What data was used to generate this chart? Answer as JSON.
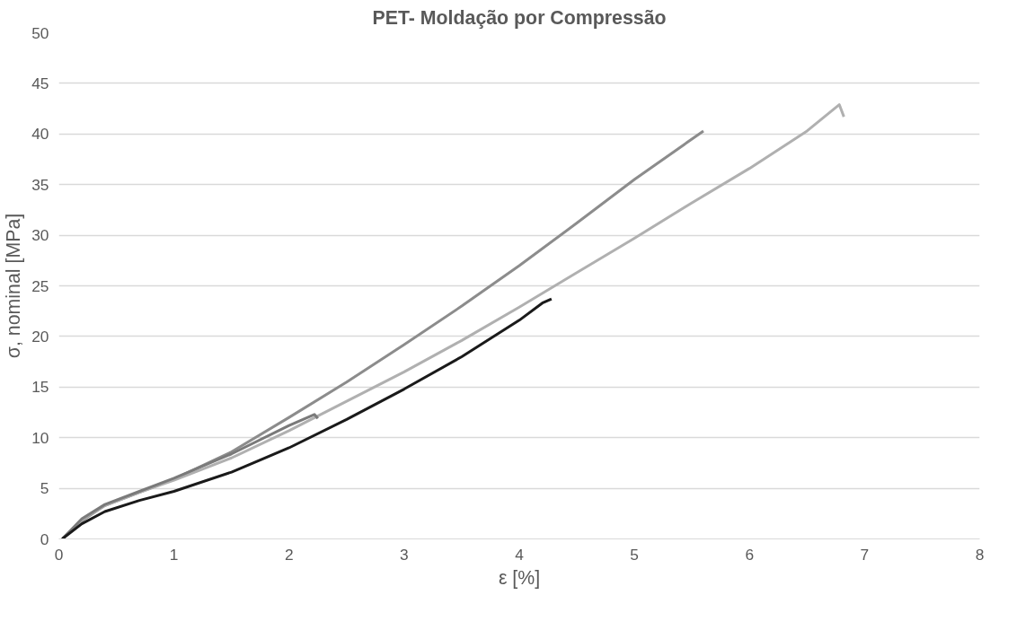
{
  "chart_data": {
    "type": "line",
    "title": "PET- Moldação por Compressão",
    "xlabel": "ε [%]",
    "ylabel": "σ, nominal [MPa]",
    "xlim": [
      0,
      8
    ],
    "ylim": [
      0,
      50
    ],
    "xticks": [
      0,
      1,
      2,
      3,
      4,
      5,
      6,
      7,
      8
    ],
    "yticks": [
      0,
      5,
      10,
      15,
      20,
      25,
      30,
      35,
      40,
      45,
      50
    ],
    "grid": "y",
    "marker": "none",
    "line_style": "solid",
    "series": [
      {
        "color": "#8c8c8c",
        "x": [
          0.03,
          0.2,
          0.4,
          0.7,
          1,
          1.5,
          2,
          2.5,
          3,
          3.5,
          4,
          4.5,
          5,
          5.6
        ],
        "values": [
          0,
          1.8,
          3.3,
          4.6,
          5.9,
          8.6,
          12,
          15.5,
          19.2,
          23,
          27,
          31.2,
          35.5,
          40.3
        ]
      },
      {
        "color": "#b0b0b0",
        "x": [
          0.03,
          0.2,
          0.4,
          0.7,
          1,
          1.5,
          2,
          2.5,
          3,
          3.5,
          4,
          4.5,
          5,
          5.5,
          6,
          6.5,
          6.78,
          6.82
        ],
        "values": [
          0,
          1.9,
          3.3,
          4.6,
          5.8,
          8.0,
          10.7,
          13.6,
          16.5,
          19.6,
          22.9,
          26.3,
          29.7,
          33.2,
          36.6,
          40.3,
          42.9,
          41.7
        ]
      },
      {
        "color": "#7a7a7a",
        "x": [
          0.03,
          0.2,
          0.4,
          0.7,
          1,
          1.5,
          2,
          2.22,
          2.25
        ],
        "values": [
          0,
          2,
          3.4,
          4.7,
          6.0,
          8.4,
          11.2,
          12.3,
          11.9
        ]
      },
      {
        "color": "#1a1a1a",
        "x": [
          0.03,
          0.2,
          0.4,
          0.7,
          1,
          1.5,
          2,
          2.5,
          3,
          3.5,
          4,
          4.2,
          4.28
        ],
        "values": [
          0,
          1.5,
          2.7,
          3.8,
          4.7,
          6.6,
          9.0,
          11.8,
          14.8,
          18.0,
          21.6,
          23.3,
          23.7
        ]
      }
    ]
  }
}
